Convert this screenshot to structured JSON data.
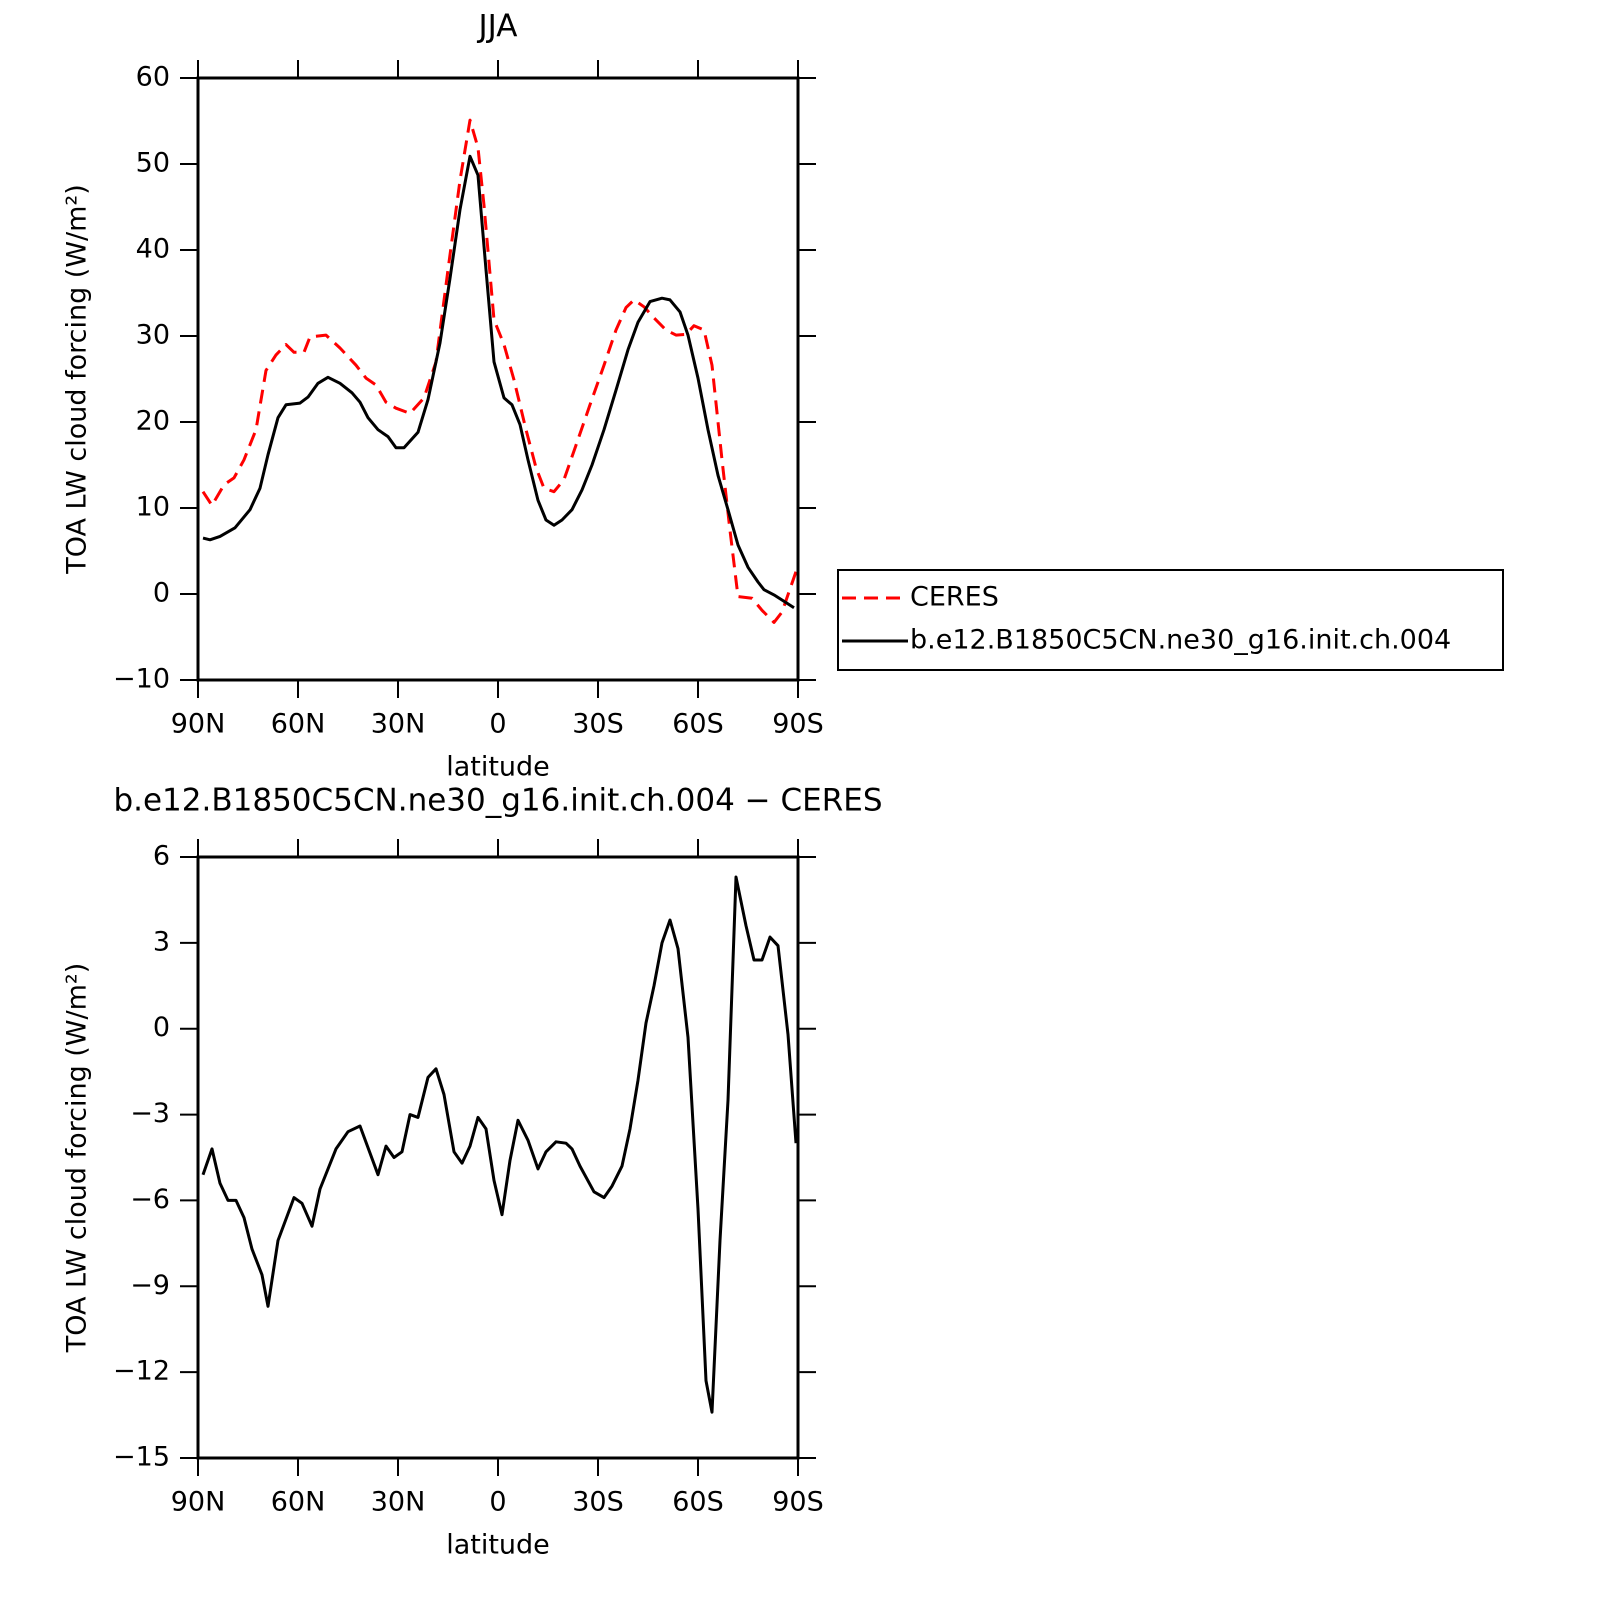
{
  "chart_data": [
    {
      "type": "line",
      "title": "JJA",
      "xlabel": "latitude",
      "ylabel": "TOA LW cloud forcing (W/m²)",
      "xlim": [
        90,
        -90
      ],
      "xticks": [
        {
          "value": 90,
          "label": "90N"
        },
        {
          "value": 60,
          "label": "60N"
        },
        {
          "value": 30,
          "label": "30N"
        },
        0,
        {
          "value": -30,
          "label": "30S"
        },
        {
          "value": -60,
          "label": "60S"
        },
        {
          "value": -90,
          "label": "90S"
        }
      ],
      "ylim": [
        -10,
        60
      ],
      "yticks": [
        {
          "value": -10,
          "label": "−10"
        },
        0,
        10,
        20,
        30,
        40,
        50,
        60
      ],
      "legend": "right",
      "series": [
        {
          "name": "CERES",
          "color": "#ff0000",
          "dash": "dashed",
          "x": [
            88.5,
            85.8,
            82.2,
            79.2,
            76.2,
            72.6,
            69.6,
            66.6,
            63.6,
            61.2,
            58.2,
            56.4,
            51.6,
            47.4,
            42.6,
            39.6,
            36.6,
            33.6,
            30.6,
            26.4,
            22.2,
            18.6,
            15,
            11.4,
            8.4,
            6,
            4.2,
            1.2,
            -1.8,
            -4.8,
            -8.4,
            -11.4,
            -13.8,
            -16.8,
            -19.8,
            -23.4,
            -27.6,
            -31.8,
            -35.4,
            -38.4,
            -40.8,
            -43.8,
            -46.8,
            -50.4,
            -53.4,
            -56.4,
            -58.8,
            -61.8,
            -64.2,
            -67.2,
            -69.6,
            -72,
            -76.2,
            -79.2,
            -82.8,
            -85.2,
            -89.4
          ],
          "values": [
            11.9,
            10.3,
            12.7,
            13.5,
            15.6,
            19.1,
            26.0,
            27.8,
            29,
            28.1,
            28.1,
            29.9,
            30.1,
            28.6,
            26.6,
            25.1,
            24.3,
            22.3,
            21.6,
            21,
            22.8,
            27,
            37.7,
            48.1,
            55.1,
            51.9,
            45.2,
            31.9,
            29,
            24.9,
            19.1,
            14.7,
            12.3,
            11.9,
            13.3,
            17.3,
            22,
            26.6,
            30.7,
            33.3,
            34.2,
            33.4,
            32.1,
            30.7,
            30.1,
            30.2,
            31.2,
            30.7,
            26.6,
            15.6,
            7.4,
            -0.3,
            -0.5,
            -1.9,
            -3.3,
            -2.1,
            2.6
          ]
        },
        {
          "name": "b.e12.B1850C5CN.ne30_g16.init.ch.004",
          "color": "#000000",
          "dash": "solid",
          "x": [
            88.5,
            86.4,
            83.4,
            78.9,
            74.4,
            71.4,
            69,
            66,
            63.6,
            59.4,
            57,
            54,
            51,
            47.4,
            43.8,
            41.4,
            39,
            36,
            33,
            30.6,
            28.2,
            24,
            21,
            17.4,
            14.4,
            11.4,
            8.4,
            6,
            3.6,
            1.2,
            -1.8,
            -4.2,
            -6.6,
            -9,
            -12,
            -14.4,
            -16.8,
            -19.2,
            -22.2,
            -25.2,
            -28.2,
            -31.8,
            -35.4,
            -39,
            -42,
            -45.6,
            -49.2,
            -51.6,
            -54.6,
            -57,
            -60,
            -63,
            -66,
            -69,
            -72,
            -75,
            -78,
            -79.8,
            -82.8,
            -85.2,
            -88.8
          ],
          "values": [
            6.5,
            6.3,
            6.7,
            7.7,
            9.8,
            12.3,
            16.2,
            20.5,
            22.0,
            22.2,
            22.9,
            24.5,
            25.2,
            24.5,
            23.4,
            22.3,
            20.5,
            19.1,
            18.3,
            17,
            17,
            18.8,
            22.6,
            29.2,
            36.7,
            44.7,
            50.9,
            48.7,
            37.7,
            27,
            22.8,
            22,
            19.7,
            15.6,
            10.9,
            8.6,
            8.0,
            8.6,
            9.8,
            12.1,
            15,
            19.1,
            23.7,
            28.4,
            31.6,
            34,
            34.4,
            34.2,
            32.8,
            30.1,
            25.1,
            19.1,
            13.8,
            9.8,
            5.7,
            3.1,
            1.4,
            0.5,
            -0.1,
            -0.7,
            -1.6
          ]
        }
      ]
    },
    {
      "type": "line",
      "title": "b.e12.B1850C5CN.ne30_g16.init.ch.004 − CERES",
      "xlabel": "latitude",
      "ylabel": "TOA LW cloud forcing (W/m²)",
      "xlim": [
        90,
        -90
      ],
      "xticks": [
        {
          "value": 90,
          "label": "90N"
        },
        {
          "value": 60,
          "label": "60N"
        },
        {
          "value": 30,
          "label": "30N"
        },
        0,
        {
          "value": -30,
          "label": "30S"
        },
        {
          "value": -60,
          "label": "60S"
        },
        {
          "value": -90,
          "label": "90S"
        }
      ],
      "ylim": [
        -15,
        6
      ],
      "yticks": [
        {
          "value": -15,
          "label": "−15"
        },
        {
          "value": -12,
          "label": "−12"
        },
        {
          "value": -9,
          "label": "−9"
        },
        {
          "value": -6,
          "label": "−6"
        },
        {
          "value": -3,
          "label": "−3"
        },
        0,
        3,
        6
      ],
      "color": "#000000",
      "x": [
        88.5,
        85.8,
        83.4,
        81,
        78.6,
        76.2,
        73.8,
        70.8,
        69,
        66,
        61.2,
        58.8,
        55.8,
        53.4,
        48.6,
        45,
        41.4,
        36,
        33.6,
        31.2,
        28.8,
        26.4,
        24,
        21,
        18.6,
        16.2,
        13.2,
        10.8,
        8.4,
        6,
        3.6,
        1.2,
        -1.2,
        -3.6,
        -6,
        -9,
        -12,
        -14.4,
        -17.4,
        -20.4,
        -22.2,
        -24.6,
        -28.8,
        -31.8,
        -34.2,
        -37.2,
        -39.6,
        -42,
        -44.4,
        -46.8,
        -49.2,
        -51.6,
        -54,
        -57,
        -60,
        -62.4,
        -64.2,
        -66.6,
        -69,
        -71.4,
        -74.4,
        -76.8,
        -79.2,
        -81.6,
        -84,
        -87,
        -89.4
      ],
      "values": [
        -5.1,
        -4.2,
        -5.4,
        -6.0,
        -6.0,
        -6.6,
        -7.7,
        -8.6,
        -9.7,
        -7.4,
        -5.9,
        -6.1,
        -6.9,
        -5.6,
        -4.2,
        -3.6,
        -3.4,
        -5.1,
        -4.1,
        -4.5,
        -4.3,
        -3.0,
        -3.1,
        -1.7,
        -1.4,
        -2.3,
        -4.3,
        -4.7,
        -4.1,
        -3.1,
        -3.5,
        -5.3,
        -6.5,
        -4.6,
        -3.2,
        -3.9,
        -4.9,
        -4.3,
        -3.95,
        -4.0,
        -4.2,
        -4.8,
        -5.7,
        -5.9,
        -5.5,
        -4.8,
        -3.5,
        -1.8,
        0.2,
        1.5,
        3.0,
        3.8,
        2.8,
        -0.3,
        -6.3,
        -12.3,
        -13.4,
        -7.4,
        -2.5,
        5.3,
        3.6,
        2.4,
        2.4,
        3.2,
        2.9,
        -0.2,
        -4.0
      ]
    }
  ]
}
